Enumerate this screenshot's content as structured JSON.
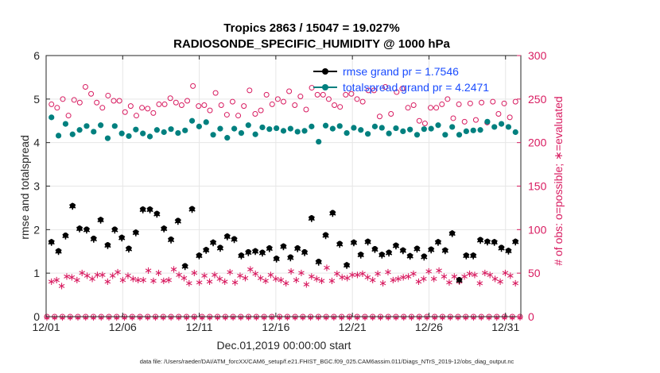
{
  "chart_data": {
    "type": "scatter",
    "title": "Tropics 2863 / 15047 = 19.027%",
    "subtitle": "RADIOSONDE_SPECIFIC_HUMIDITY @ 1000 hPa",
    "xlabel": "Dec.01,2019 00:00:00 start",
    "ylabel_left": "rmse and totalspread",
    "ylabel_right": "# of obs: o=possible; ∗=evaluated",
    "footer": "data file: /Users/raeder/DAI/ATM_forcXX/CAM6_setup/f.e21.FHIST_BGC.f09_025.CAM6assim.011/Diags_NTrS_2019-12/obs_diag_output.nc",
    "x_ticks": [
      "12/01",
      "12/06",
      "12/11",
      "12/16",
      "12/21",
      "12/26",
      "12/31"
    ],
    "x_tick_days": [
      1,
      6,
      11,
      16,
      21,
      26,
      31
    ],
    "xlim": [
      1,
      32
    ],
    "ylim_left": [
      0,
      6
    ],
    "ylim_right": [
      0,
      300
    ],
    "yticks_left": [
      "0",
      "1",
      "2",
      "3",
      "4",
      "5",
      "6"
    ],
    "yticks_right": [
      "0",
      "50",
      "100",
      "150",
      "200",
      "250",
      "300"
    ],
    "colors": {
      "rmse": "#000000",
      "totalspread": "#00807f",
      "obs": "#d81b60",
      "legend_text": "#1a4cff"
    },
    "series": [
      {
        "name": "rmse",
        "legend": "rmse grand pr = 1.7546",
        "axis": "left",
        "values": [
          1.72,
          1.51,
          1.87,
          2.55,
          2.03,
          2.01,
          1.8,
          2.23,
          1.65,
          2.01,
          1.82,
          1.57,
          1.94,
          2.47,
          2.47,
          2.37,
          2.03,
          1.78,
          2.21,
          1.17,
          2.48,
          1.41,
          1.54,
          1.71,
          1.59,
          1.85,
          1.79,
          1.41,
          1.49,
          1.51,
          1.48,
          1.58,
          1.34,
          1.62,
          1.37,
          1.58,
          1.49,
          2.27,
          1.27,
          1.88,
          2.39,
          1.68,
          1.19,
          1.71,
          1.43,
          1.73,
          1.56,
          1.43,
          1.48,
          1.64,
          1.53,
          1.4,
          1.57,
          1.39,
          1.55,
          1.72,
          1.53,
          1.92,
          0.85,
          1.41,
          1.41,
          1.77,
          1.73,
          1.72,
          1.59,
          1.52,
          1.73
        ]
      },
      {
        "name": "totalspread",
        "legend": "totalspread grand pr = 4.2471",
        "axis": "left",
        "values": [
          4.58,
          4.16,
          4.43,
          4.19,
          4.29,
          4.38,
          4.25,
          4.4,
          4.1,
          4.38,
          4.21,
          4.15,
          4.3,
          4.21,
          4.14,
          4.29,
          4.24,
          4.31,
          4.22,
          4.28,
          4.5,
          4.37,
          4.47,
          4.18,
          4.32,
          4.11,
          4.32,
          4.22,
          4.4,
          4.19,
          4.35,
          4.31,
          4.33,
          4.27,
          4.32,
          4.25,
          4.27,
          4.37,
          4.02,
          4.39,
          4.32,
          4.38,
          4.22,
          4.34,
          4.29,
          4.2,
          4.37,
          4.34,
          4.21,
          4.33,
          4.26,
          4.3,
          4.18,
          4.31,
          4.32,
          4.4,
          4.18,
          4.36,
          4.18,
          4.26,
          4.28,
          4.29,
          4.48,
          4.36,
          4.43,
          4.36,
          4.24
        ]
      },
      {
        "name": "obs_possible",
        "axis": "right",
        "values": [
          244,
          240,
          250,
          231,
          249,
          246,
          264,
          256,
          246,
          240,
          254,
          248,
          248,
          235,
          242,
          231,
          240,
          239,
          234,
          244,
          244,
          251,
          246,
          243,
          248,
          265,
          242,
          243,
          237,
          257,
          243,
          232,
          247,
          231,
          242,
          260,
          233,
          237,
          255,
          244,
          250,
          247,
          259,
          243,
          253,
          238,
          263,
          255,
          255,
          250,
          243,
          241,
          255,
          256,
          250,
          247,
          260,
          260,
          230,
          264,
          233,
          258,
          262,
          240,
          243,
          225,
          222,
          240,
          240,
          244,
          250,
          228,
          244,
          224,
          245,
          226,
          246,
          223,
          247,
          233,
          245,
          229,
          247
        ]
      },
      {
        "name": "obs_evaluated",
        "axis": "right",
        "values": [
          41,
          43,
          36,
          47,
          46,
          43,
          51,
          48,
          44,
          49,
          49,
          41,
          48,
          52,
          43,
          48,
          44,
          43,
          43,
          54,
          42,
          51,
          42,
          43,
          55,
          49,
          45,
          39,
          51,
          40,
          48,
          41,
          49,
          44,
          41,
          52,
          40,
          48,
          45,
          55,
          50,
          45,
          42,
          49,
          44,
          43,
          39,
          53,
          43,
          51,
          38,
          47,
          44,
          42,
          57,
          42,
          50,
          46,
          45,
          49,
          49,
          50,
          46,
          43,
          50,
          39,
          52,
          43,
          44,
          46,
          47,
          50,
          41,
          44,
          53,
          44,
          54,
          47,
          40,
          47,
          41,
          47,
          50,
          49,
          39,
          51,
          49,
          44,
          41,
          51,
          48,
          39
        ]
      },
      {
        "name": "obs_zero_line",
        "axis": "right",
        "values": [
          0
        ]
      }
    ]
  }
}
